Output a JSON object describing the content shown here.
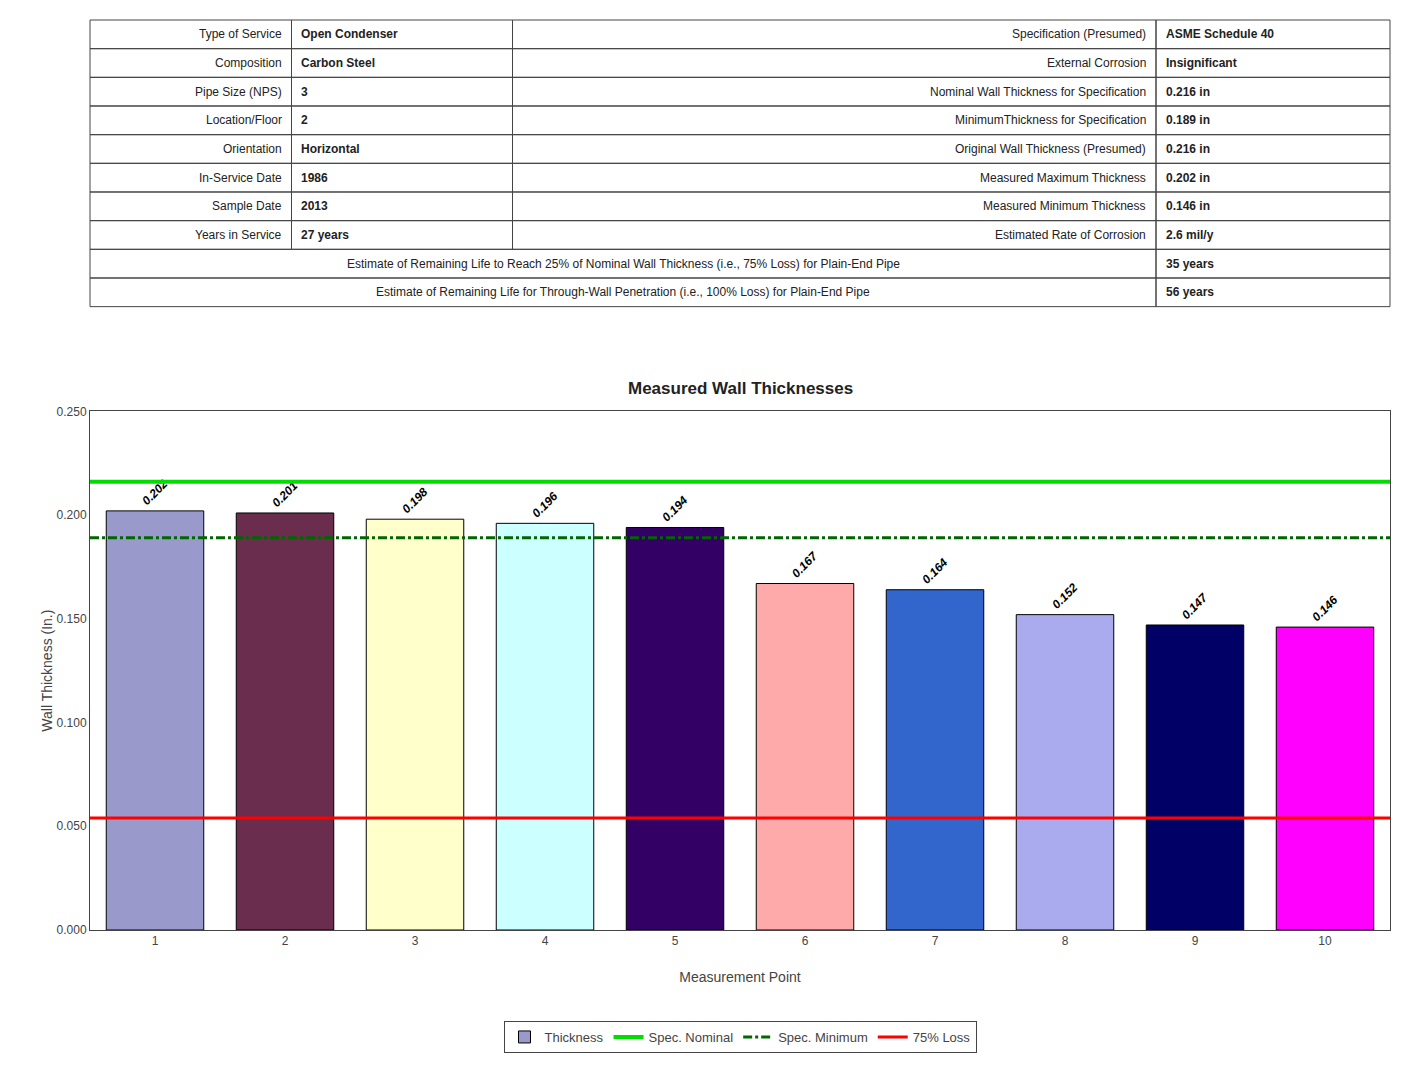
{
  "chart_data": [
    {
      "type": "table",
      "rows": [
        [
          "Type of Service",
          "Open Condenser",
          "Specification (Presumed)",
          "ASME Schedule 40"
        ],
        [
          "Composition",
          "Carbon Steel",
          "External Corrosion",
          "Insignificant"
        ],
        [
          "Pipe Size (NPS)",
          "3",
          "Nominal Wall Thickness for Specification",
          "0.216 in"
        ],
        [
          "Location/Floor",
          "2",
          "MinimumThickness for Specification",
          "0.189 in"
        ],
        [
          "Orientation",
          "Horizontal",
          "Original Wall Thickness (Presumed)",
          "0.216 in"
        ],
        [
          "In-Service Date",
          "1986",
          "Measured Maximum Thickness",
          "0.202 in"
        ],
        [
          "Sample Date",
          "2013",
          "Measured Minimum Thickness",
          "0.146 in"
        ],
        [
          "Years in Service",
          "27 years",
          "Estimated Rate of Corrosion",
          "2.6 mil/y"
        ],
        [
          "Estimate of Remaining Life to Reach 25% of Nominal Wall Thickness (i.e., 75% Loss) for Plain-End Pipe",
          "35 years"
        ],
        [
          "Estimate of Remaining Life for Through-Wall Penetration (i.e., 100% Loss) for Plain-End Pipe",
          "56 years"
        ]
      ]
    },
    {
      "type": "bar",
      "title": "Measured Wall Thicknesses",
      "xlabel": "Measurement Point",
      "ylabel": "Wall Thickness (In.)",
      "categories": [
        "1",
        "2",
        "3",
        "4",
        "5",
        "6",
        "7",
        "8",
        "9",
        "10"
      ],
      "series": [
        {
          "name": "Thickness",
          "type": "bar",
          "values": [
            0.202,
            0.201,
            0.198,
            0.196,
            0.194,
            0.167,
            0.164,
            0.152,
            0.147,
            0.146
          ],
          "colors": [
            "#9999CC",
            "#6B2D4E",
            "#FFFFCC",
            "#CCFFFF",
            "#330066",
            "#FFAAAA",
            "#3366CC",
            "#AAAAEE",
            "#000066",
            "#FF00FF"
          ],
          "edge_color": "#000000"
        },
        {
          "name": "Spec. Nominal",
          "type": "hline",
          "value": 0.216,
          "color": "#00DD00",
          "line_style": "solid"
        },
        {
          "name": "Spec. Minimum",
          "type": "hline",
          "value": 0.189,
          "color": "#006600",
          "line_style": "dashdot"
        },
        {
          "name": "75% Loss",
          "type": "hline",
          "value": 0.054,
          "color": "#FF0000",
          "line_style": "solid"
        }
      ],
      "ylim": [
        0.0,
        0.25
      ],
      "yticks": [
        {
          "value": 0.0,
          "label": "0.000"
        },
        {
          "value": 0.05,
          "label": "0.050"
        },
        {
          "value": 0.1,
          "label": "0.100"
        },
        {
          "value": 0.15,
          "label": "0.150"
        },
        {
          "value": 0.2,
          "label": "0.200"
        },
        {
          "value": 0.25,
          "label": "0.250"
        }
      ],
      "data_labels": true,
      "grid": false,
      "legend": "bottom"
    }
  ]
}
